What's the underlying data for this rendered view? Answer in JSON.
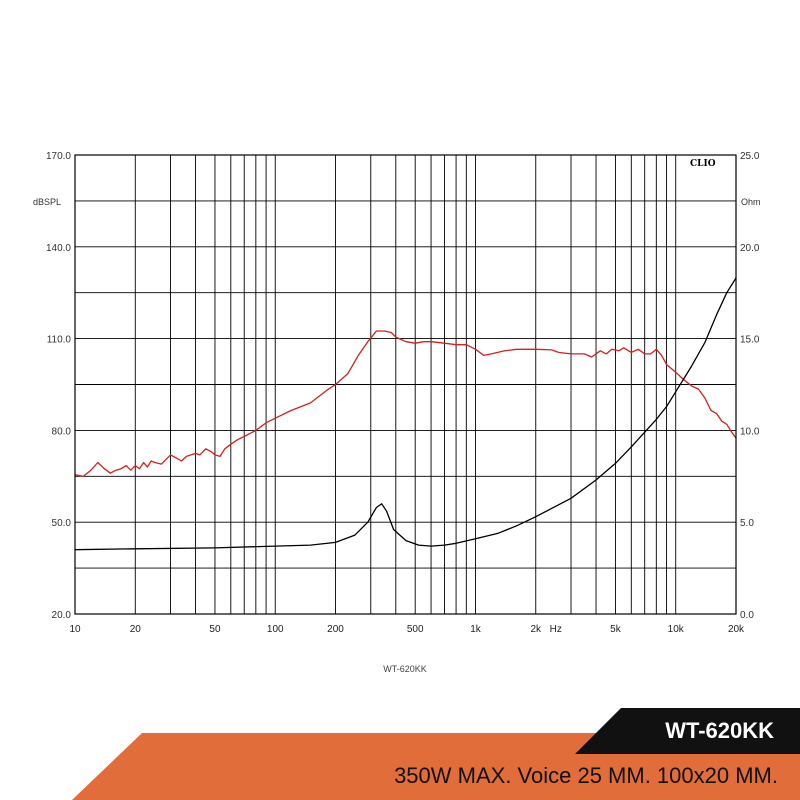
{
  "chart_data": {
    "type": "line",
    "xscale": "log",
    "xlim": [
      10,
      20000
    ],
    "x_tick_labels": [
      {
        "value": 10,
        "label": "10"
      },
      {
        "value": 20,
        "label": "20"
      },
      {
        "value": 50,
        "label": "50"
      },
      {
        "value": 100,
        "label": "100"
      },
      {
        "value": 200,
        "label": "200"
      },
      {
        "value": 500,
        "label": "500"
      },
      {
        "value": 1000,
        "label": "1k"
      },
      {
        "value": 2000,
        "label": "2k"
      },
      {
        "value": 5000,
        "label": "5k"
      },
      {
        "value": 10000,
        "label": "10k"
      },
      {
        "value": 20000,
        "label": "20k"
      }
    ],
    "x_unit_label": "Hz",
    "x_unit_after": 2000,
    "x_grid": [
      10,
      20,
      30,
      40,
      50,
      60,
      70,
      80,
      90,
      100,
      200,
      300,
      400,
      500,
      600,
      700,
      800,
      900,
      1000,
      2000,
      3000,
      4000,
      5000,
      6000,
      7000,
      8000,
      9000,
      10000,
      20000
    ],
    "ylim_left": [
      20,
      170
    ],
    "ylim_right": [
      0,
      25
    ],
    "y_grid_left": [
      20,
      35,
      50,
      65,
      80,
      95,
      110,
      125,
      140,
      155,
      170
    ],
    "y_ticks_left": [
      {
        "value": 170,
        "label": "170.0"
      },
      {
        "value": 140,
        "label": "140.0"
      },
      {
        "value": 110,
        "label": "110.0"
      },
      {
        "value": 80,
        "label": "80.0"
      },
      {
        "value": 50,
        "label": "50.0"
      },
      {
        "value": 20,
        "label": "20.0"
      }
    ],
    "y_ticks_right": [
      {
        "value": 25,
        "label": "25.0"
      },
      {
        "value": 20,
        "label": "20.0"
      },
      {
        "value": 15,
        "label": "15.0"
      },
      {
        "value": 10,
        "label": "10.0"
      },
      {
        "value": 5,
        "label": "5.0"
      },
      {
        "value": 0,
        "label": "0.0"
      }
    ],
    "ylabel_left": "dBSPL",
    "ylabel_right": "Ohm",
    "brand": "CLIO",
    "caption": "WT-620KK",
    "grid": true,
    "series": [
      {
        "axis": "left",
        "color": "#d42020",
        "points": [
          [
            10,
            65.5
          ],
          [
            11,
            65
          ],
          [
            12,
            67
          ],
          [
            13,
            69.5
          ],
          [
            14,
            67.5
          ],
          [
            15,
            66
          ],
          [
            16,
            67
          ],
          [
            17,
            67.5
          ],
          [
            18,
            68.5
          ],
          [
            19,
            67
          ],
          [
            20,
            68.5
          ],
          [
            21,
            67.5
          ],
          [
            22,
            69.5
          ],
          [
            23,
            68
          ],
          [
            24,
            70
          ],
          [
            25,
            69.5
          ],
          [
            27,
            69
          ],
          [
            30,
            72
          ],
          [
            32,
            71
          ],
          [
            34,
            70
          ],
          [
            36,
            71.5
          ],
          [
            40,
            72.5
          ],
          [
            42,
            72
          ],
          [
            45,
            74
          ],
          [
            48,
            73
          ],
          [
            50,
            72
          ],
          [
            53,
            71.5
          ],
          [
            56,
            74
          ],
          [
            60,
            75.5
          ],
          [
            65,
            77
          ],
          [
            70,
            78
          ],
          [
            80,
            80
          ],
          [
            90,
            82.5
          ],
          [
            100,
            84
          ],
          [
            120,
            86.5
          ],
          [
            150,
            89
          ],
          [
            180,
            93
          ],
          [
            200,
            95
          ],
          [
            230,
            98.5
          ],
          [
            260,
            104.5
          ],
          [
            290,
            109
          ],
          [
            320,
            112.5
          ],
          [
            350,
            112.5
          ],
          [
            380,
            112
          ],
          [
            400,
            110.5
          ],
          [
            450,
            109
          ],
          [
            500,
            108.5
          ],
          [
            550,
            109
          ],
          [
            600,
            109
          ],
          [
            700,
            108.5
          ],
          [
            800,
            108
          ],
          [
            900,
            108
          ],
          [
            1000,
            106.5
          ],
          [
            1100,
            104.5
          ],
          [
            1200,
            105
          ],
          [
            1400,
            106
          ],
          [
            1600,
            106.5
          ],
          [
            2000,
            106.5
          ],
          [
            2400,
            106.3
          ],
          [
            2600,
            105.5
          ],
          [
            3000,
            105
          ],
          [
            3500,
            105
          ],
          [
            3800,
            104
          ],
          [
            4200,
            106
          ],
          [
            4500,
            105
          ],
          [
            4800,
            106.5
          ],
          [
            5200,
            106
          ],
          [
            5500,
            107
          ],
          [
            6000,
            105.5
          ],
          [
            6500,
            106.5
          ],
          [
            7000,
            105
          ],
          [
            7500,
            105
          ],
          [
            8000,
            106.5
          ],
          [
            8500,
            104.5
          ],
          [
            9000,
            101.5
          ],
          [
            10000,
            99
          ],
          [
            11000,
            96.5
          ],
          [
            12000,
            94.5
          ],
          [
            13000,
            93.5
          ],
          [
            14000,
            90.5
          ],
          [
            15000,
            86.5
          ],
          [
            16000,
            85.5
          ],
          [
            17000,
            83
          ],
          [
            18000,
            82
          ],
          [
            19000,
            79.5
          ],
          [
            20000,
            77.5
          ]
        ]
      },
      {
        "axis": "right",
        "color": "#000000",
        "points": [
          [
            10,
            3.5
          ],
          [
            20,
            3.55
          ],
          [
            50,
            3.6
          ],
          [
            100,
            3.7
          ],
          [
            150,
            3.75
          ],
          [
            200,
            3.9
          ],
          [
            250,
            4.3
          ],
          [
            290,
            5
          ],
          [
            320,
            5.8
          ],
          [
            340,
            6
          ],
          [
            360,
            5.6
          ],
          [
            390,
            4.6
          ],
          [
            450,
            4
          ],
          [
            520,
            3.75
          ],
          [
            600,
            3.7
          ],
          [
            700,
            3.75
          ],
          [
            800,
            3.85
          ],
          [
            1000,
            4.1
          ],
          [
            1300,
            4.4
          ],
          [
            1600,
            4.8
          ],
          [
            2000,
            5.3
          ],
          [
            3000,
            6.3
          ],
          [
            4000,
            7.3
          ],
          [
            5000,
            8.2
          ],
          [
            6000,
            9.1
          ],
          [
            7000,
            9.9
          ],
          [
            8000,
            10.6
          ],
          [
            9000,
            11.3
          ],
          [
            10000,
            12.1
          ],
          [
            12000,
            13.5
          ],
          [
            14000,
            14.8
          ],
          [
            16000,
            16.3
          ],
          [
            18000,
            17.5
          ],
          [
            20000,
            18.3
          ]
        ]
      }
    ]
  },
  "banner": {
    "model": "WT-620KK",
    "specs": "350W MAX. Voice 25 MM. 100x20 MM.",
    "accent_color": "#e06d3a"
  }
}
